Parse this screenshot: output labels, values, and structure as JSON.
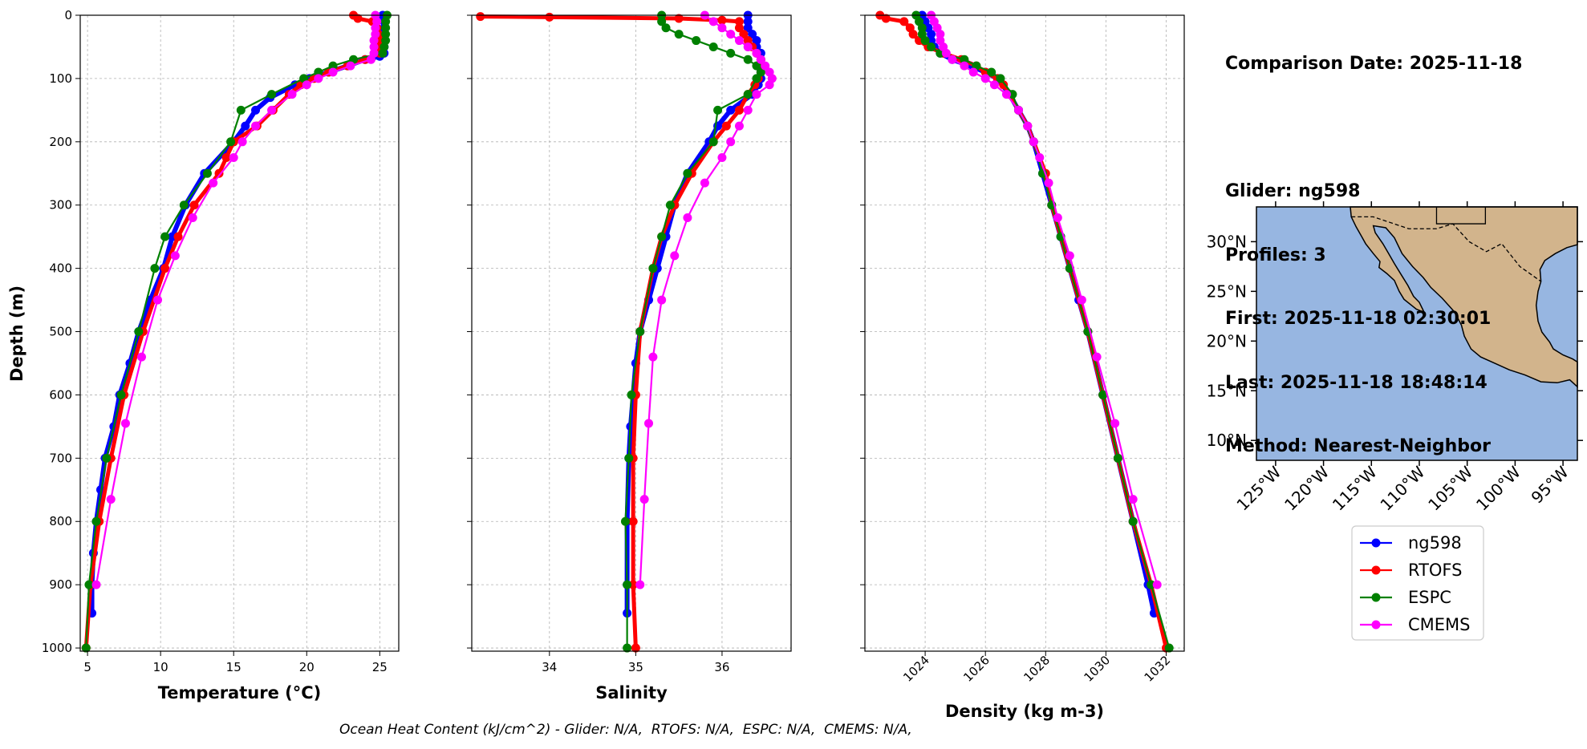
{
  "info": {
    "comparison_date": "Comparison Date: 2025-11-18",
    "glider": "Glider: ng598",
    "profiles": "Profiles: 3",
    "first": "First: 2025-11-18 02:30:01",
    "last": "Last: 2025-11-18 18:48:14",
    "method": "Method: Nearest-Neighbor"
  },
  "footer": "Ocean Heat Content (kJ/cm^2) - Glider: N/A,  RTOFS: N/A,  ESPC: N/A,  CMEMS: N/A,",
  "colors": {
    "ng598": "#0000ff",
    "ng598_extra": "#00bfff",
    "RTOFS": "#ff0000",
    "ESPC": "#008000",
    "CMEMS": "#ff00ff",
    "ocean": "#97b6e1",
    "land": "#d2b48c",
    "grid": "#b0b0b0"
  },
  "map": {
    "lat_ticks": [
      "30°N",
      "25°N",
      "20°N",
      "15°N",
      "10°N"
    ],
    "lon_ticks": [
      "125°W",
      "120°W",
      "115°W",
      "110°W",
      "105°W",
      "100°W",
      "95°W"
    ],
    "lon_range": [
      -127,
      -93.5
    ],
    "lat_range": [
      8,
      33.5
    ]
  },
  "chart_data": [
    {
      "type": "line",
      "xlabel": "Temperature (°C)",
      "ylabel": "Depth (m)",
      "xlim": [
        4.5,
        26.3
      ],
      "ylim": [
        1005,
        0
      ],
      "x_ticks": [
        5,
        10,
        15,
        20,
        25
      ],
      "y_ticks": [
        0,
        100,
        200,
        300,
        400,
        500,
        600,
        700,
        800,
        900,
        1000
      ],
      "grid": true,
      "series": [
        {
          "name": "ng598",
          "color": "blue",
          "depth": [
            0,
            10,
            20,
            30,
            40,
            50,
            60,
            65,
            70,
            80,
            90,
            100,
            110,
            130,
            150,
            175,
            200,
            250,
            300,
            350,
            400,
            450,
            500,
            550,
            600,
            650,
            700,
            750,
            800,
            850,
            900,
            945
          ],
          "values": [
            25.2,
            25.3,
            25.3,
            25.3,
            25.3,
            25.3,
            25.3,
            25.0,
            24.0,
            22.8,
            21.5,
            20.2,
            19.2,
            17.5,
            16.5,
            15.8,
            15.0,
            13.0,
            11.7,
            10.8,
            10.2,
            9.3,
            8.5,
            7.9,
            7.2,
            6.8,
            6.2,
            5.9,
            5.6,
            5.4,
            5.3,
            5.3
          ]
        },
        {
          "name": "RTOFS",
          "color": "red",
          "depth": [
            0,
            5,
            10,
            20,
            30,
            40,
            50,
            60,
            70,
            80,
            90,
            100,
            110,
            125,
            150,
            175,
            200,
            225,
            250,
            300,
            350,
            400,
            500,
            600,
            700,
            800,
            900,
            1000
          ],
          "values": [
            23.2,
            23.5,
            24.5,
            24.8,
            24.9,
            25.0,
            25.0,
            25.0,
            24.0,
            22.8,
            21.5,
            20.5,
            19.6,
            18.8,
            17.7,
            16.6,
            15.0,
            14.5,
            14.0,
            12.3,
            11.2,
            10.3,
            8.8,
            7.5,
            6.6,
            5.8,
            5.2,
            4.9
          ]
        },
        {
          "name": "ESPC",
          "color": "green",
          "depth": [
            0,
            10,
            20,
            30,
            40,
            50,
            60,
            70,
            80,
            90,
            100,
            125,
            150,
            200,
            250,
            300,
            350,
            400,
            500,
            600,
            700,
            800,
            900,
            1000
          ],
          "values": [
            25.5,
            25.4,
            25.4,
            25.4,
            25.4,
            25.3,
            25.2,
            23.2,
            21.8,
            20.8,
            19.8,
            17.6,
            15.5,
            14.8,
            13.2,
            11.6,
            10.3,
            9.6,
            8.5,
            7.3,
            6.3,
            5.6,
            5.1,
            4.9
          ]
        },
        {
          "name": "CMEMS",
          "color": "magenta",
          "depth": [
            0,
            10,
            20,
            30,
            40,
            50,
            60,
            70,
            80,
            90,
            100,
            110,
            125,
            150,
            175,
            200,
            225,
            265,
            320,
            380,
            450,
            540,
            645,
            765,
            900
          ],
          "values": [
            24.7,
            24.8,
            24.7,
            24.7,
            24.6,
            24.6,
            24.6,
            24.4,
            23.0,
            21.8,
            20.8,
            20.0,
            19.0,
            17.6,
            16.5,
            15.6,
            15.0,
            13.6,
            12.2,
            11.0,
            9.8,
            8.7,
            7.6,
            6.6,
            5.6
          ]
        }
      ]
    },
    {
      "type": "line",
      "xlabel": "Salinity",
      "xlim": [
        33.1,
        36.8
      ],
      "ylim": [
        1005,
        0
      ],
      "x_ticks": [
        34,
        35,
        36
      ],
      "grid": true,
      "series": [
        {
          "name": "ng598",
          "color": "blue",
          "depth": [
            0,
            10,
            20,
            30,
            40,
            50,
            60,
            70,
            80,
            90,
            100,
            110,
            125,
            150,
            175,
            200,
            250,
            300,
            350,
            400,
            450,
            500,
            550,
            600,
            650,
            700,
            800,
            900,
            945
          ],
          "values": [
            36.3,
            36.3,
            36.3,
            36.35,
            36.4,
            36.4,
            36.45,
            36.45,
            36.45,
            36.45,
            36.45,
            36.42,
            36.35,
            36.1,
            35.95,
            35.85,
            35.6,
            35.45,
            35.35,
            35.25,
            35.15,
            35.05,
            35.0,
            34.97,
            34.94,
            34.92,
            34.9,
            34.9,
            34.9
          ]
        },
        {
          "name": "RTOFS",
          "color": "red",
          "depth": [
            2,
            3,
            5,
            8,
            10,
            20,
            30,
            40,
            50,
            60,
            70,
            80,
            90,
            100,
            110,
            125,
            150,
            175,
            200,
            250,
            300,
            350,
            400,
            500,
            600,
            700,
            800,
            900,
            1000
          ],
          "values": [
            33.2,
            34.0,
            35.5,
            36.0,
            36.2,
            36.2,
            36.25,
            36.3,
            36.35,
            36.4,
            36.45,
            36.48,
            36.45,
            36.42,
            36.38,
            36.3,
            36.2,
            36.05,
            35.9,
            35.65,
            35.45,
            35.3,
            35.2,
            35.05,
            35.0,
            34.97,
            34.97,
            34.97,
            35.0
          ]
        },
        {
          "name": "ESPC",
          "color": "green",
          "depth": [
            0,
            10,
            20,
            30,
            40,
            50,
            60,
            70,
            80,
            90,
            100,
            125,
            150,
            200,
            250,
            300,
            350,
            400,
            500,
            600,
            700,
            800,
            900,
            1000
          ],
          "values": [
            35.3,
            35.3,
            35.35,
            35.5,
            35.7,
            35.9,
            36.1,
            36.3,
            36.4,
            36.45,
            36.4,
            36.3,
            35.95,
            35.9,
            35.6,
            35.4,
            35.3,
            35.2,
            35.05,
            34.95,
            34.92,
            34.88,
            34.9,
            34.9
          ]
        },
        {
          "name": "CMEMS",
          "color": "magenta",
          "depth": [
            0,
            10,
            20,
            30,
            40,
            50,
            60,
            70,
            80,
            90,
            100,
            110,
            125,
            150,
            175,
            200,
            225,
            265,
            320,
            380,
            450,
            540,
            645,
            765,
            900
          ],
          "values": [
            35.8,
            35.9,
            36.0,
            36.1,
            36.2,
            36.3,
            36.4,
            36.45,
            36.5,
            36.55,
            36.58,
            36.55,
            36.4,
            36.3,
            36.2,
            36.1,
            36.0,
            35.8,
            35.6,
            35.45,
            35.3,
            35.2,
            35.15,
            35.1,
            35.05
          ]
        }
      ]
    },
    {
      "type": "line",
      "xlabel": "Density (kg m-3)",
      "xlim": [
        1022.0,
        1032.6
      ],
      "ylim": [
        1005,
        0
      ],
      "x_ticks": [
        1024,
        1026,
        1028,
        1030,
        1032
      ],
      "grid": true,
      "series": [
        {
          "name": "ng598",
          "color": "blue",
          "depth": [
            0,
            10,
            20,
            30,
            40,
            50,
            60,
            70,
            80,
            90,
            100,
            125,
            150,
            175,
            200,
            250,
            300,
            350,
            400,
            450,
            500,
            600,
            700,
            800,
            900,
            945
          ],
          "values": [
            1023.9,
            1024.0,
            1024.1,
            1024.2,
            1024.2,
            1024.3,
            1024.5,
            1024.9,
            1025.5,
            1026.0,
            1026.4,
            1026.8,
            1027.1,
            1027.4,
            1027.6,
            1027.9,
            1028.2,
            1028.5,
            1028.8,
            1029.1,
            1029.4,
            1029.9,
            1030.4,
            1030.9,
            1031.4,
            1031.6
          ]
        },
        {
          "name": "RTOFS",
          "color": "red",
          "depth": [
            0,
            5,
            10,
            20,
            30,
            40,
            50,
            60,
            70,
            80,
            90,
            100,
            110,
            125,
            150,
            175,
            200,
            250,
            300,
            400,
            500,
            600,
            700,
            800,
            900,
            1000
          ],
          "values": [
            1022.5,
            1022.7,
            1023.3,
            1023.5,
            1023.6,
            1023.8,
            1024.1,
            1024.6,
            1025.2,
            1025.7,
            1026.0,
            1026.4,
            1026.6,
            1026.8,
            1027.1,
            1027.4,
            1027.6,
            1028.0,
            1028.2,
            1028.8,
            1029.4,
            1029.9,
            1030.4,
            1030.9,
            1031.5,
            1032.0
          ]
        },
        {
          "name": "ESPC",
          "color": "green",
          "depth": [
            0,
            10,
            20,
            30,
            40,
            50,
            60,
            70,
            80,
            90,
            100,
            125,
            150,
            200,
            250,
            300,
            350,
            400,
            500,
            600,
            700,
            800,
            900,
            1000
          ],
          "values": [
            1023.7,
            1023.8,
            1023.9,
            1023.9,
            1024.0,
            1024.2,
            1024.5,
            1025.3,
            1025.7,
            1026.2,
            1026.5,
            1026.9,
            1027.1,
            1027.6,
            1027.9,
            1028.2,
            1028.5,
            1028.8,
            1029.4,
            1029.9,
            1030.4,
            1030.9,
            1031.5,
            1032.1
          ]
        },
        {
          "name": "CMEMS",
          "color": "magenta",
          "depth": [
            0,
            10,
            20,
            30,
            40,
            50,
            60,
            70,
            80,
            90,
            100,
            110,
            125,
            150,
            175,
            200,
            225,
            265,
            320,
            380,
            450,
            540,
            645,
            765,
            900
          ],
          "values": [
            1024.2,
            1024.3,
            1024.4,
            1024.5,
            1024.5,
            1024.6,
            1024.7,
            1024.9,
            1025.3,
            1025.6,
            1026.0,
            1026.3,
            1026.7,
            1027.1,
            1027.4,
            1027.6,
            1027.8,
            1028.1,
            1028.4,
            1028.8,
            1029.2,
            1029.7,
            1030.3,
            1030.9,
            1031.7
          ]
        }
      ]
    }
  ],
  "legend": {
    "placement": "below-map",
    "entries": [
      "ng598",
      "RTOFS",
      "ESPC",
      "CMEMS"
    ]
  }
}
